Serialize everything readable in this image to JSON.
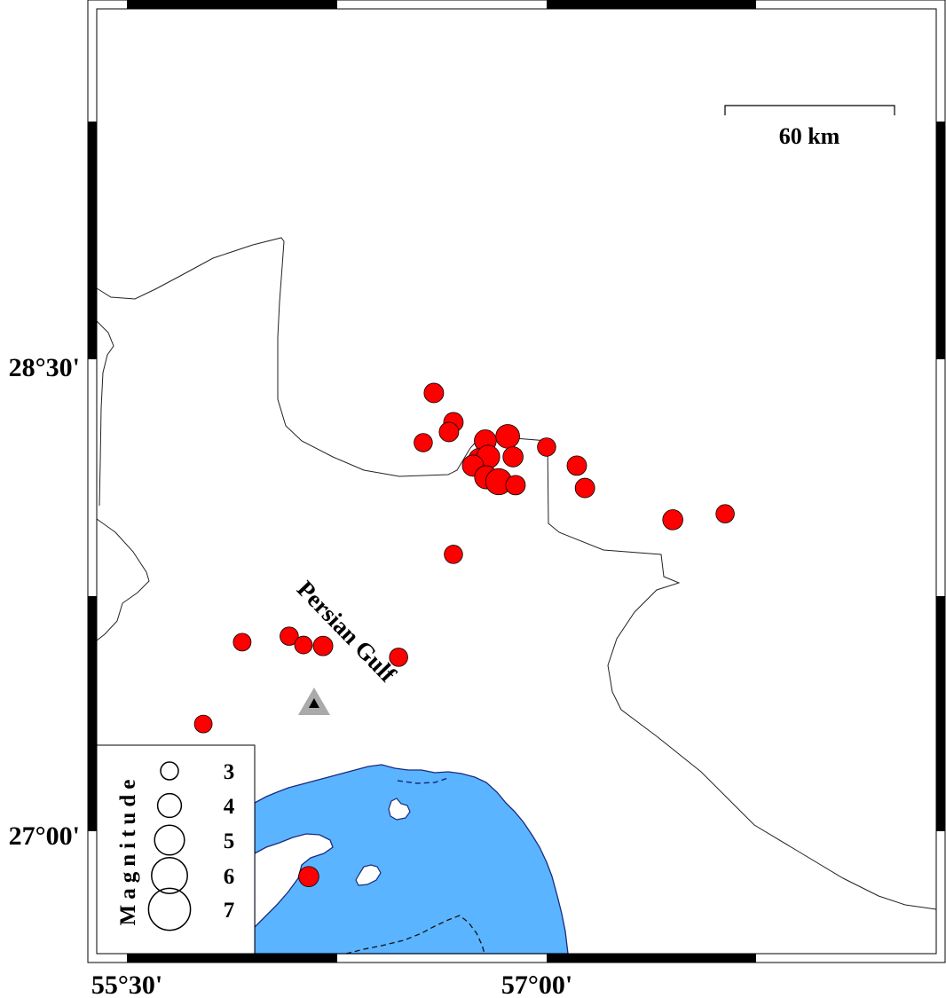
{
  "map": {
    "label_sea": "Persian Gulf",
    "scale_bar": {
      "label": "60 km"
    },
    "lat_ticks": [
      {
        "label": "28°30'",
        "value": 28.5
      },
      {
        "label": "27°00'",
        "value": 27.0
      }
    ],
    "lon_ticks": [
      {
        "label": "55°30'",
        "value": 55.5
      },
      {
        "label": "57°00'",
        "value": 57.0
      }
    ],
    "colors": {
      "event": "#ff0000",
      "water": "#5ab4ff",
      "coast": "#1a2a80",
      "station": "#aaaaaa"
    },
    "legend": {
      "title": "Magnitude",
      "entries": [
        {
          "label": "3",
          "magnitude": 3
        },
        {
          "label": "4",
          "magnitude": 4
        },
        {
          "label": "5",
          "magnitude": 5
        },
        {
          "label": "6",
          "magnitude": 6
        },
        {
          "label": "7",
          "magnitude": 7
        }
      ]
    },
    "station": {
      "icon": "triangle-icon",
      "lon": 56.169,
      "lat": 27.406
    },
    "events": [
      {
        "lon": 56.597,
        "lat": 28.393,
        "mag": 3.3
      },
      {
        "lon": 56.667,
        "lat": 28.3,
        "mag": 3.3
      },
      {
        "lon": 56.651,
        "lat": 28.269,
        "mag": 3.3
      },
      {
        "lon": 56.559,
        "lat": 28.235,
        "mag": 3.1
      },
      {
        "lon": 56.781,
        "lat": 28.241,
        "mag": 3.7
      },
      {
        "lon": 56.861,
        "lat": 28.255,
        "mag": 4.0
      },
      {
        "lon": 56.88,
        "lat": 28.19,
        "mag": 3.4
      },
      {
        "lon": 56.762,
        "lat": 28.181,
        "mag": 3.9
      },
      {
        "lon": 56.791,
        "lat": 28.19,
        "mag": 3.9
      },
      {
        "lon": 56.737,
        "lat": 28.162,
        "mag": 3.6
      },
      {
        "lon": 56.784,
        "lat": 28.125,
        "mag": 3.9
      },
      {
        "lon": 56.829,
        "lat": 28.111,
        "mag": 4.4
      },
      {
        "lon": 56.889,
        "lat": 28.1,
        "mag": 3.3
      },
      {
        "lon": 57.0,
        "lat": 28.221,
        "mag": 3.1
      },
      {
        "lon": 57.108,
        "lat": 28.162,
        "mag": 3.3
      },
      {
        "lon": 57.137,
        "lat": 28.091,
        "mag": 3.3
      },
      {
        "lon": 57.451,
        "lat": 27.99,
        "mag": 3.4
      },
      {
        "lon": 57.638,
        "lat": 28.009,
        "mag": 3.1
      },
      {
        "lon": 56.667,
        "lat": 27.88,
        "mag": 3.1
      },
      {
        "lon": 55.912,
        "lat": 27.601,
        "mag": 3.0
      },
      {
        "lon": 56.08,
        "lat": 27.62,
        "mag": 3.1
      },
      {
        "lon": 56.131,
        "lat": 27.592,
        "mag": 3.0
      },
      {
        "lon": 56.201,
        "lat": 27.589,
        "mag": 3.3
      },
      {
        "lon": 56.471,
        "lat": 27.553,
        "mag": 3.1
      },
      {
        "lon": 55.773,
        "lat": 27.341,
        "mag": 3.0
      },
      {
        "lon": 56.15,
        "lat": 26.856,
        "mag": 3.4
      }
    ]
  }
}
